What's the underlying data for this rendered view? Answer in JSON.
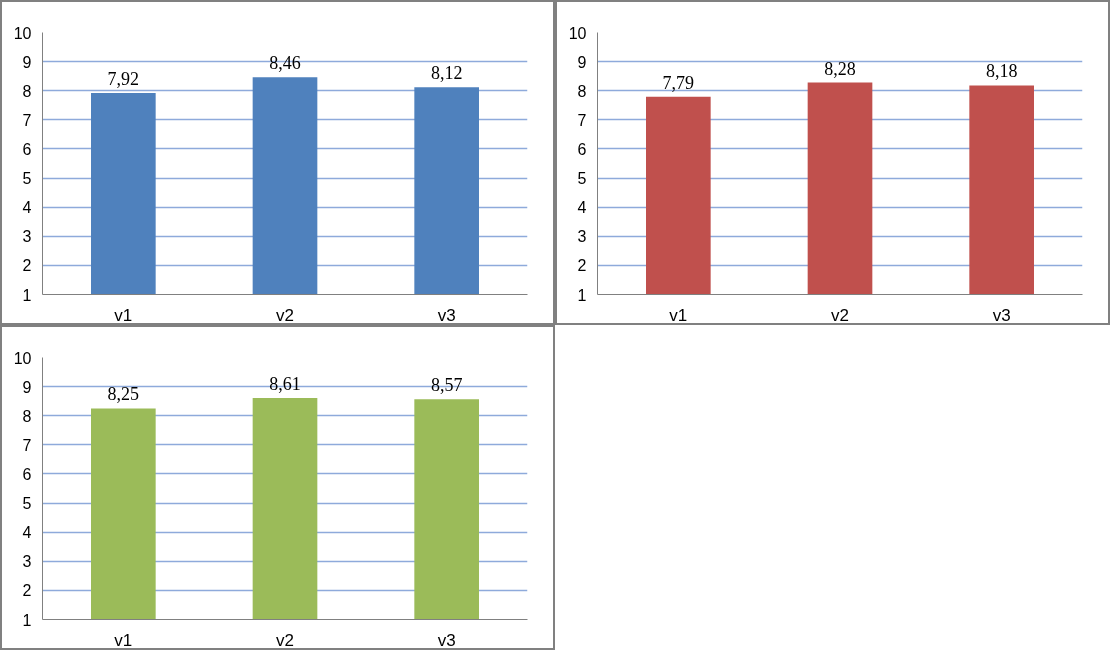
{
  "chart_data": [
    {
      "type": "bar",
      "categories": [
        "v1",
        "v2",
        "v3"
      ],
      "values": [
        7.92,
        8.46,
        8.12
      ],
      "value_labels": [
        "7,92",
        "8,46",
        "8,12"
      ],
      "color": "#4f81bd",
      "ylim": [
        1,
        10
      ],
      "yticks": [
        1,
        2,
        3,
        4,
        5,
        6,
        7,
        8,
        9,
        10
      ],
      "grid": "y"
    },
    {
      "type": "bar",
      "categories": [
        "v1",
        "v2",
        "v3"
      ],
      "values": [
        7.79,
        8.28,
        8.18
      ],
      "value_labels": [
        "7,79",
        "8,28",
        "8,18"
      ],
      "color": "#c0504d",
      "ylim": [
        1,
        10
      ],
      "yticks": [
        1,
        2,
        3,
        4,
        5,
        6,
        7,
        8,
        9,
        10
      ],
      "grid": "y"
    },
    {
      "type": "bar",
      "categories": [
        "v1",
        "v2",
        "v3"
      ],
      "values": [
        8.25,
        8.61,
        8.57
      ],
      "value_labels": [
        "8,25",
        "8,61",
        "8,57"
      ],
      "color": "#9bbb59",
      "ylim": [
        1,
        10
      ],
      "yticks": [
        1,
        2,
        3,
        4,
        5,
        6,
        7,
        8,
        9,
        10
      ],
      "grid": "y"
    }
  ]
}
